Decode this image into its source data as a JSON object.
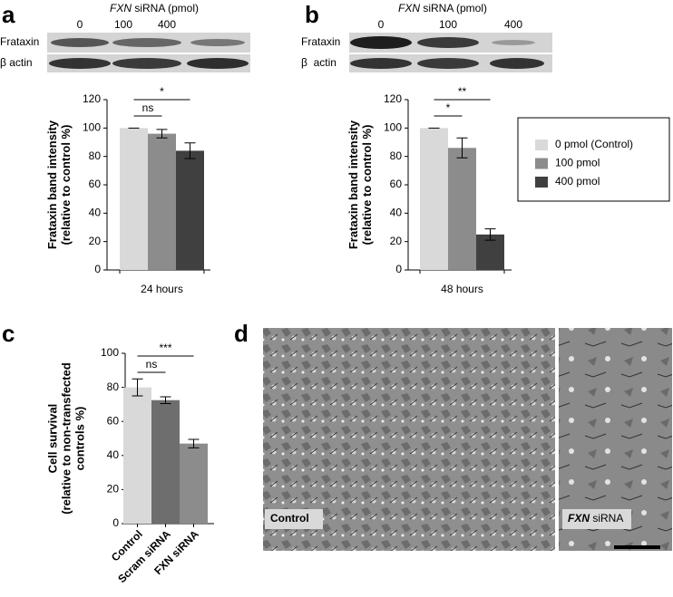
{
  "chart_data": [
    {
      "type": "bar",
      "ylabel": [
        "Frataxin band intensity",
        "(relative to control %)"
      ],
      "categories": [
        "24 hours"
      ],
      "series": [
        {
          "color": "#d9d9d9",
          "values": [
            100
          ],
          "errors": [
            0
          ]
        },
        {
          "color": "#8c8c8c",
          "values": [
            96
          ],
          "errors": [
            3
          ]
        },
        {
          "color": "#404040",
          "values": [
            84
          ],
          "errors": [
            5.5
          ]
        }
      ],
      "annotations": [
        "ns",
        "*"
      ],
      "ylim": [
        0,
        120
      ],
      "yticks": [
        0,
        20,
        40,
        60,
        80,
        100,
        120
      ]
    },
    {
      "type": "bar",
      "ylabel": [
        "Frataxin band intensity",
        "(relative to control %)"
      ],
      "categories": [
        "48 hours"
      ],
      "series": [
        {
          "name": "0 pmol (Control)",
          "color": "#d9d9d9",
          "values": [
            100
          ],
          "errors": [
            0
          ]
        },
        {
          "name": "100 pmol",
          "color": "#8c8c8c",
          "values": [
            86
          ],
          "errors": [
            7
          ]
        },
        {
          "name": "400 pmol",
          "color": "#404040",
          "values": [
            25
          ],
          "errors": [
            4
          ]
        }
      ],
      "annotations": [
        "*",
        "**"
      ],
      "ylim": [
        0,
        120
      ],
      "yticks": [
        0,
        20,
        40,
        60,
        80,
        100,
        120
      ],
      "legend": "right"
    },
    {
      "type": "bar",
      "ylabel": [
        "Cell survival",
        "(relative to non-transfected",
        "controls %)"
      ],
      "categories": [
        "Control",
        "Scram siRNA",
        "FXN siRNA"
      ],
      "values": [
        80,
        72.5,
        47
      ],
      "errors": [
        5,
        2,
        2.5
      ],
      "colors": [
        "#d9d9d9",
        "#6e6e6e",
        "#8c8c8c"
      ],
      "annotations": [
        "ns",
        "***"
      ],
      "ylim": [
        0,
        100
      ],
      "yticks": [
        0,
        20,
        40,
        60,
        80,
        100
      ]
    }
  ],
  "panel_labels": [
    "a",
    "b",
    "c",
    "d"
  ],
  "blots": [
    {
      "gene": "FXN",
      "header": "siRNA (pmol)",
      "lanes": [
        "0",
        "100",
        "400"
      ],
      "rows": [
        "Frataxin",
        "β actin"
      ]
    },
    {
      "gene": "FXN",
      "header": "siRNA (pmol)",
      "lanes": [
        "0",
        "100",
        "400"
      ],
      "rows": [
        "Frataxin",
        "β  actin"
      ]
    }
  ],
  "micrographs": [
    {
      "label": "Control"
    },
    {
      "gene": "FXN",
      "label": "siRNA"
    }
  ]
}
